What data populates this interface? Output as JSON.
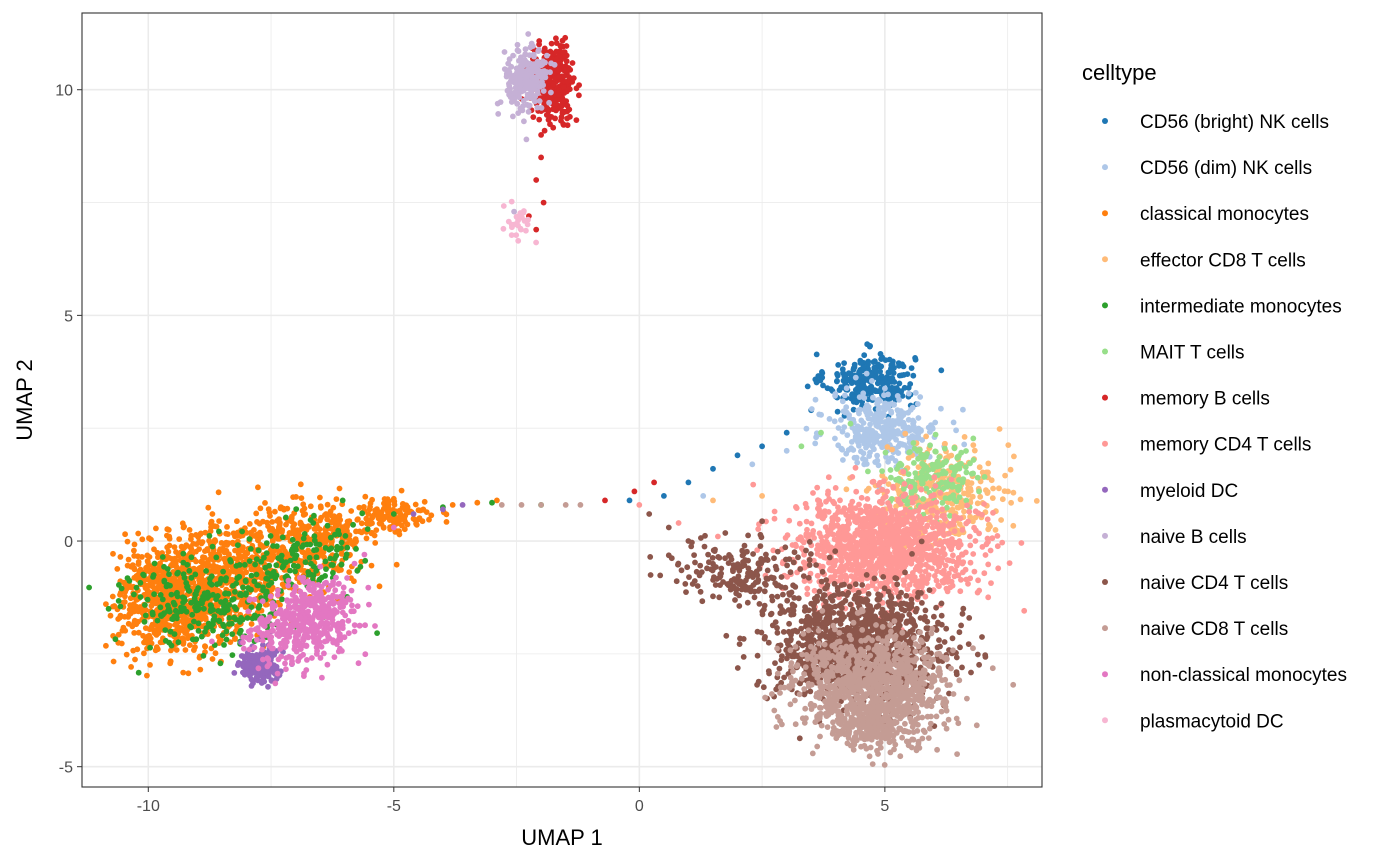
{
  "chart_data": {
    "type": "scatter",
    "xlabel": "UMAP 1",
    "ylabel": "UMAP 2",
    "xlim": [
      -11.35,
      8.2
    ],
    "ylim": [
      -5.45,
      11.7
    ],
    "xticks": [
      -10,
      -5,
      0,
      5
    ],
    "xtick_labels": [
      "-10",
      "-5",
      "0",
      "5"
    ],
    "yticks": [
      -5,
      0,
      5,
      10
    ],
    "ytick_labels": [
      "-5",
      "0",
      "5",
      "10"
    ],
    "grid": true,
    "legend": {
      "title": "celltype",
      "position": "right"
    },
    "series": [
      {
        "name": "CD56 (bright) NK cells",
        "color": "#1f77b4",
        "clusters": [
          {
            "cx": 4.7,
            "cy": 3.55,
            "sx": 0.45,
            "sy": 0.3,
            "n": 260
          }
        ],
        "trail": [
          [
            -0.2,
            0.9
          ],
          [
            0.5,
            1.0
          ],
          [
            1.0,
            1.3
          ],
          [
            1.5,
            1.6
          ],
          [
            2.0,
            1.9
          ],
          [
            2.5,
            2.1
          ],
          [
            3.0,
            2.4
          ],
          [
            3.5,
            2.9
          ],
          [
            4.0,
            3.2
          ]
        ]
      },
      {
        "name": "CD56 (dim) NK cells",
        "color": "#aec7e8",
        "clusters": [
          {
            "cx": 5.0,
            "cy": 2.5,
            "sx": 0.55,
            "sy": 0.4,
            "n": 340
          }
        ],
        "trail": [
          [
            1.3,
            1.0
          ],
          [
            2.3,
            1.7
          ],
          [
            3.0,
            2.0
          ],
          [
            3.6,
            2.3
          ]
        ]
      },
      {
        "name": "classical monocytes",
        "color": "#ff7f0e",
        "clusters": [
          {
            "cx": -9.5,
            "cy": -1.3,
            "sx": 0.55,
            "sy": 0.6,
            "n": 700
          },
          {
            "cx": -8.3,
            "cy": -0.8,
            "sx": 0.8,
            "sy": 0.6,
            "n": 520
          },
          {
            "cx": -6.8,
            "cy": 0.0,
            "sx": 0.7,
            "sy": 0.45,
            "n": 320
          },
          {
            "cx": -5.1,
            "cy": 0.55,
            "sx": 0.5,
            "sy": 0.2,
            "n": 130
          }
        ],
        "trail": [
          [
            -4.4,
            0.7
          ],
          [
            -3.8,
            0.8
          ],
          [
            -3.3,
            0.85
          ],
          [
            -2.9,
            0.9
          ]
        ]
      },
      {
        "name": "effector CD8 T cells",
        "color": "#ffbb78",
        "clusters": [
          {
            "cx": 6.2,
            "cy": 1.1,
            "sx": 0.6,
            "sy": 0.5,
            "n": 320
          }
        ],
        "trail": [
          [
            1.5,
            0.9
          ],
          [
            2.5,
            1.0
          ]
        ]
      },
      {
        "name": "intermediate monocytes",
        "color": "#2ca02c",
        "clusters": [
          {
            "cx": -8.7,
            "cy": -1.3,
            "sx": 0.9,
            "sy": 0.55,
            "n": 290
          },
          {
            "cx": -6.8,
            "cy": -0.3,
            "sx": 0.6,
            "sy": 0.4,
            "n": 110
          }
        ],
        "trail": [
          [
            -5.0,
            0.6
          ],
          [
            -4.0,
            0.75
          ],
          [
            -3.0,
            0.85
          ],
          [
            -2.0,
            0.8
          ]
        ]
      },
      {
        "name": "MAIT T cells",
        "color": "#98df8a",
        "clusters": [
          {
            "cx": 5.9,
            "cy": 1.4,
            "sx": 0.45,
            "sy": 0.4,
            "n": 170
          }
        ],
        "trail": [
          [
            3.3,
            2.1
          ],
          [
            3.7,
            2.4
          ],
          [
            4.3,
            2.6
          ]
        ]
      },
      {
        "name": "memory B cells",
        "color": "#d62728",
        "clusters": [
          {
            "cx": -1.75,
            "cy": 10.15,
            "sx": 0.22,
            "sy": 0.38,
            "n": 340
          }
        ],
        "trail": [
          [
            -2.0,
            9.0
          ],
          [
            -2.0,
            8.5
          ],
          [
            -2.1,
            8.0
          ],
          [
            -1.95,
            7.5
          ],
          [
            -2.25,
            7.2
          ],
          [
            -2.1,
            6.9
          ],
          [
            -0.7,
            0.9
          ],
          [
            0.3,
            1.3
          ],
          [
            -0.1,
            1.1
          ]
        ]
      },
      {
        "name": "memory CD4 T cells",
        "color": "#ff9896",
        "clusters": [
          {
            "cx": 5.0,
            "cy": -0.1,
            "sx": 0.9,
            "sy": 0.55,
            "n": 1200
          }
        ],
        "trail": [
          [
            0.0,
            0.8
          ],
          [
            0.8,
            0.4
          ],
          [
            1.6,
            0.1
          ],
          [
            2.4,
            -0.2
          ]
        ]
      },
      {
        "name": "myeloid DC",
        "color": "#9467bd",
        "clusters": [
          {
            "cx": -7.7,
            "cy": -2.75,
            "sx": 0.22,
            "sy": 0.2,
            "n": 150
          }
        ],
        "trail": [
          [
            -4.6,
            0.6
          ],
          [
            -4.0,
            0.7
          ],
          [
            -3.6,
            0.8
          ],
          [
            -7.5,
            -2.0
          ]
        ]
      },
      {
        "name": "naive B cells",
        "color": "#c5b0d5",
        "clusters": [
          {
            "cx": -2.3,
            "cy": 10.25,
            "sx": 0.22,
            "sy": 0.33,
            "n": 230
          }
        ],
        "trail": [
          [
            -2.35,
            9.3
          ],
          [
            -2.3,
            8.9
          ],
          [
            -2.55,
            7.3
          ]
        ]
      },
      {
        "name": "naive CD4 T cells",
        "color": "#8c564b",
        "clusters": [
          {
            "cx": 4.4,
            "cy": -2.3,
            "sx": 0.9,
            "sy": 0.65,
            "n": 1100
          },
          {
            "cx": 2.0,
            "cy": -0.7,
            "sx": 0.7,
            "sy": 0.35,
            "n": 180
          }
        ],
        "trail": [
          [
            0.2,
            0.6
          ],
          [
            0.6,
            0.3
          ],
          [
            1.0,
            0.0
          ],
          [
            1.4,
            -0.3
          ]
        ]
      },
      {
        "name": "naive CD8 T cells",
        "color": "#c49c94",
        "clusters": [
          {
            "cx": 4.7,
            "cy": -3.2,
            "sx": 0.8,
            "sy": 0.55,
            "n": 900
          },
          {
            "cx": 4.9,
            "cy": -4.1,
            "sx": 0.35,
            "sy": 0.3,
            "n": 180
          }
        ],
        "trail": [
          [
            -2.8,
            0.8
          ],
          [
            -2.4,
            0.8
          ],
          [
            -2.0,
            0.8
          ],
          [
            -1.5,
            0.8
          ],
          [
            -1.2,
            0.8
          ]
        ]
      },
      {
        "name": "non-classical monocytes",
        "color": "#e377c2",
        "clusters": [
          {
            "cx": -6.6,
            "cy": -1.7,
            "sx": 0.45,
            "sy": 0.45,
            "n": 330
          },
          {
            "cx": -7.3,
            "cy": -2.1,
            "sx": 0.4,
            "sy": 0.35,
            "n": 140
          }
        ],
        "trail": [
          [
            -5.8,
            -0.5
          ],
          [
            -5.6,
            -0.3
          ],
          [
            -5.0,
            0.3
          ]
        ]
      },
      {
        "name": "plasmacytoid DC",
        "color": "#f7b6d2",
        "clusters": [
          {
            "cx": -2.45,
            "cy": 7.05,
            "sx": 0.12,
            "sy": 0.2,
            "n": 28
          }
        ],
        "trail": []
      }
    ]
  }
}
